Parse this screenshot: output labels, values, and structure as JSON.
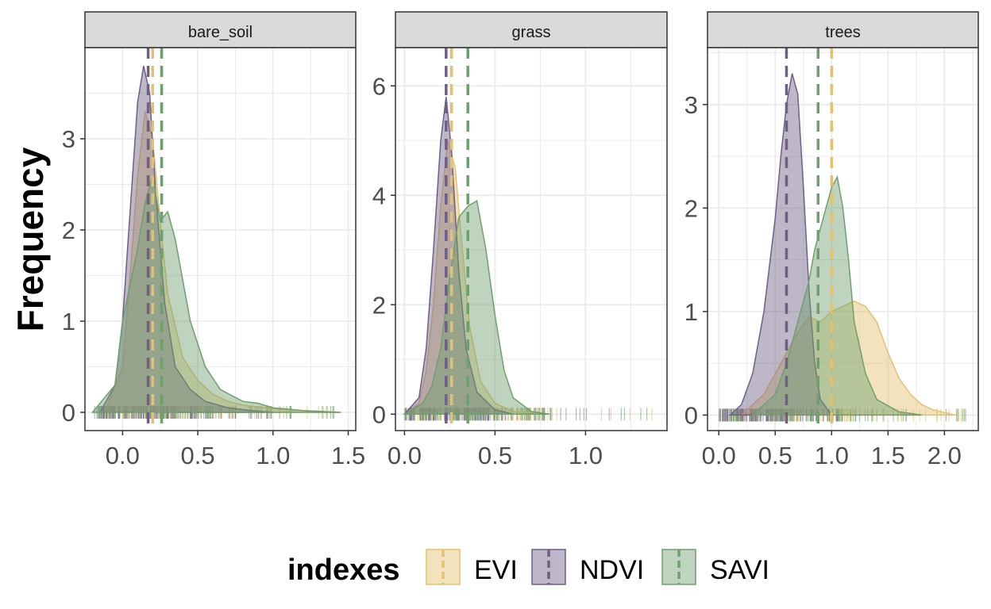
{
  "chart_data": {
    "type": "area",
    "ylabel": "Frequency",
    "xlabel": "",
    "legend": {
      "title": "indexes",
      "placement": "bottom",
      "entries": [
        "EVI",
        "NDVI",
        "SAVI"
      ]
    },
    "colors": {
      "EVI": "#e3c16f",
      "NDVI": "#6f5f86",
      "SAVI": "#6f9f6f",
      "strip_fill": "#d9d9d9",
      "grid": "#ebebeb"
    },
    "grid": true,
    "facets": [
      {
        "label": "bare_soil",
        "xlim": [
          -0.25,
          1.55
        ],
        "ylim": [
          -0.2,
          4.0
        ],
        "xticks": [
          0.0,
          0.5,
          1.0,
          1.5
        ],
        "xtick_labels": [
          "0.0",
          "0.5",
          "1.0",
          "1.5"
        ],
        "yticks": [
          0,
          1,
          2,
          3
        ],
        "ytick_labels": [
          "0",
          "1",
          "2",
          "3"
        ],
        "series": [
          {
            "name": "EVI",
            "mean": 0.2,
            "rug_range": [
              -0.12,
              1.45
            ],
            "x": [
              -0.12,
              0.0,
              0.05,
              0.1,
              0.15,
              0.2,
              0.25,
              0.3,
              0.4,
              0.5,
              0.6,
              0.7,
              0.8,
              0.9,
              1.0,
              1.2,
              1.45
            ],
            "y": [
              0.0,
              0.5,
              1.5,
              2.6,
              3.3,
              3.0,
              2.1,
              1.3,
              0.6,
              0.35,
              0.2,
              0.12,
              0.08,
              0.06,
              0.04,
              0.02,
              0.0
            ]
          },
          {
            "name": "NDVI",
            "mean": 0.17,
            "rug_range": [
              -0.15,
              1.0
            ],
            "x": [
              -0.15,
              -0.05,
              0.0,
              0.05,
              0.1,
              0.14,
              0.18,
              0.22,
              0.28,
              0.35,
              0.45,
              0.55,
              0.7,
              0.85,
              1.0
            ],
            "y": [
              0.0,
              0.3,
              1.0,
              2.2,
              3.4,
              3.8,
              3.5,
              2.4,
              1.2,
              0.5,
              0.25,
              0.12,
              0.05,
              0.02,
              0.0
            ]
          },
          {
            "name": "SAVI",
            "mean": 0.26,
            "rug_range": [
              -0.2,
              1.45
            ],
            "x": [
              -0.2,
              -0.05,
              0.0,
              0.1,
              0.15,
              0.2,
              0.25,
              0.3,
              0.35,
              0.45,
              0.55,
              0.65,
              0.8,
              0.9,
              1.0,
              1.2,
              1.45
            ],
            "y": [
              0.0,
              0.3,
              1.0,
              1.8,
              2.3,
              2.6,
              2.1,
              2.2,
              1.9,
              1.0,
              0.5,
              0.25,
              0.12,
              0.1,
              0.05,
              0.02,
              0.0
            ]
          }
        ]
      },
      {
        "label": "grass",
        "xlim": [
          -0.05,
          1.45
        ],
        "ylim": [
          -0.3,
          6.7
        ],
        "xticks": [
          0.0,
          0.5,
          1.0
        ],
        "xtick_labels": [
          "0.0",
          "0.5",
          "1.0"
        ],
        "yticks": [
          0,
          2,
          4,
          6
        ],
        "ytick_labels": [
          "0",
          "2",
          "4",
          "6"
        ],
        "series": [
          {
            "name": "EVI",
            "mean": 0.26,
            "rug_range": [
              0.0,
              1.4
            ],
            "x": [
              0.0,
              0.08,
              0.12,
              0.16,
              0.2,
              0.24,
              0.28,
              0.32,
              0.36,
              0.42,
              0.5,
              0.6,
              0.8
            ],
            "y": [
              0.0,
              0.2,
              0.8,
              2.0,
              3.8,
              5.0,
              4.5,
              3.0,
              1.6,
              0.6,
              0.2,
              0.05,
              0.0
            ]
          },
          {
            "name": "NDVI",
            "mean": 0.23,
            "rug_range": [
              0.0,
              0.85
            ],
            "x": [
              0.0,
              0.08,
              0.12,
              0.16,
              0.2,
              0.23,
              0.26,
              0.3,
              0.34,
              0.4,
              0.5,
              0.6
            ],
            "y": [
              0.0,
              0.3,
              1.2,
              3.0,
              5.0,
              5.8,
              4.8,
              2.6,
              1.2,
              0.4,
              0.08,
              0.0
            ]
          },
          {
            "name": "SAVI",
            "mean": 0.35,
            "rug_range": [
              0.0,
              1.4
            ],
            "x": [
              0.0,
              0.1,
              0.15,
              0.2,
              0.25,
              0.3,
              0.35,
              0.4,
              0.45,
              0.5,
              0.55,
              0.6,
              0.7,
              0.8
            ],
            "y": [
              0.0,
              0.2,
              0.5,
              1.2,
              2.5,
              3.6,
              3.8,
              3.9,
              3.0,
              1.8,
              0.8,
              0.3,
              0.05,
              0.0
            ]
          }
        ]
      },
      {
        "label": "trees",
        "xlim": [
          -0.1,
          2.3
        ],
        "ylim": [
          -0.15,
          3.55
        ],
        "xticks": [
          0.0,
          0.5,
          1.0,
          1.5,
          2.0
        ],
        "xtick_labels": [
          "0.0",
          "0.5",
          "1.0",
          "1.5",
          "2.0"
        ],
        "yticks": [
          0,
          1,
          2,
          3
        ],
        "ytick_labels": [
          "0",
          "1",
          "2",
          "3"
        ],
        "series": [
          {
            "name": "EVI",
            "mean": 1.0,
            "rug_range": [
              0.0,
              2.15
            ],
            "x": [
              0.2,
              0.4,
              0.6,
              0.7,
              0.8,
              0.9,
              1.0,
              1.1,
              1.2,
              1.3,
              1.4,
              1.5,
              1.6,
              1.7,
              1.8,
              1.9,
              2.1
            ],
            "y": [
              0.0,
              0.2,
              0.6,
              0.8,
              0.95,
              0.9,
              1.0,
              1.05,
              1.1,
              1.05,
              0.9,
              0.6,
              0.35,
              0.2,
              0.1,
              0.05,
              0.0
            ]
          },
          {
            "name": "NDVI",
            "mean": 0.6,
            "rug_range": [
              0.0,
              1.1
            ],
            "x": [
              0.1,
              0.2,
              0.3,
              0.4,
              0.5,
              0.55,
              0.6,
              0.65,
              0.7,
              0.75,
              0.8,
              0.85,
              0.9,
              1.0
            ],
            "y": [
              0.0,
              0.1,
              0.4,
              1.0,
              1.9,
              2.5,
              3.0,
              3.3,
              3.1,
              2.2,
              1.2,
              0.5,
              0.15,
              0.0
            ]
          },
          {
            "name": "SAVI",
            "mean": 0.88,
            "rug_range": [
              0.0,
              2.2
            ],
            "x": [
              0.3,
              0.5,
              0.6,
              0.7,
              0.8,
              0.85,
              0.9,
              0.95,
              1.0,
              1.05,
              1.1,
              1.15,
              1.2,
              1.3,
              1.4,
              1.6,
              1.8
            ],
            "y": [
              0.0,
              0.2,
              0.5,
              0.9,
              1.3,
              1.6,
              1.8,
              2.0,
              2.2,
              2.3,
              2.0,
              1.5,
              0.9,
              0.4,
              0.15,
              0.03,
              0.0
            ]
          }
        ]
      }
    ]
  }
}
